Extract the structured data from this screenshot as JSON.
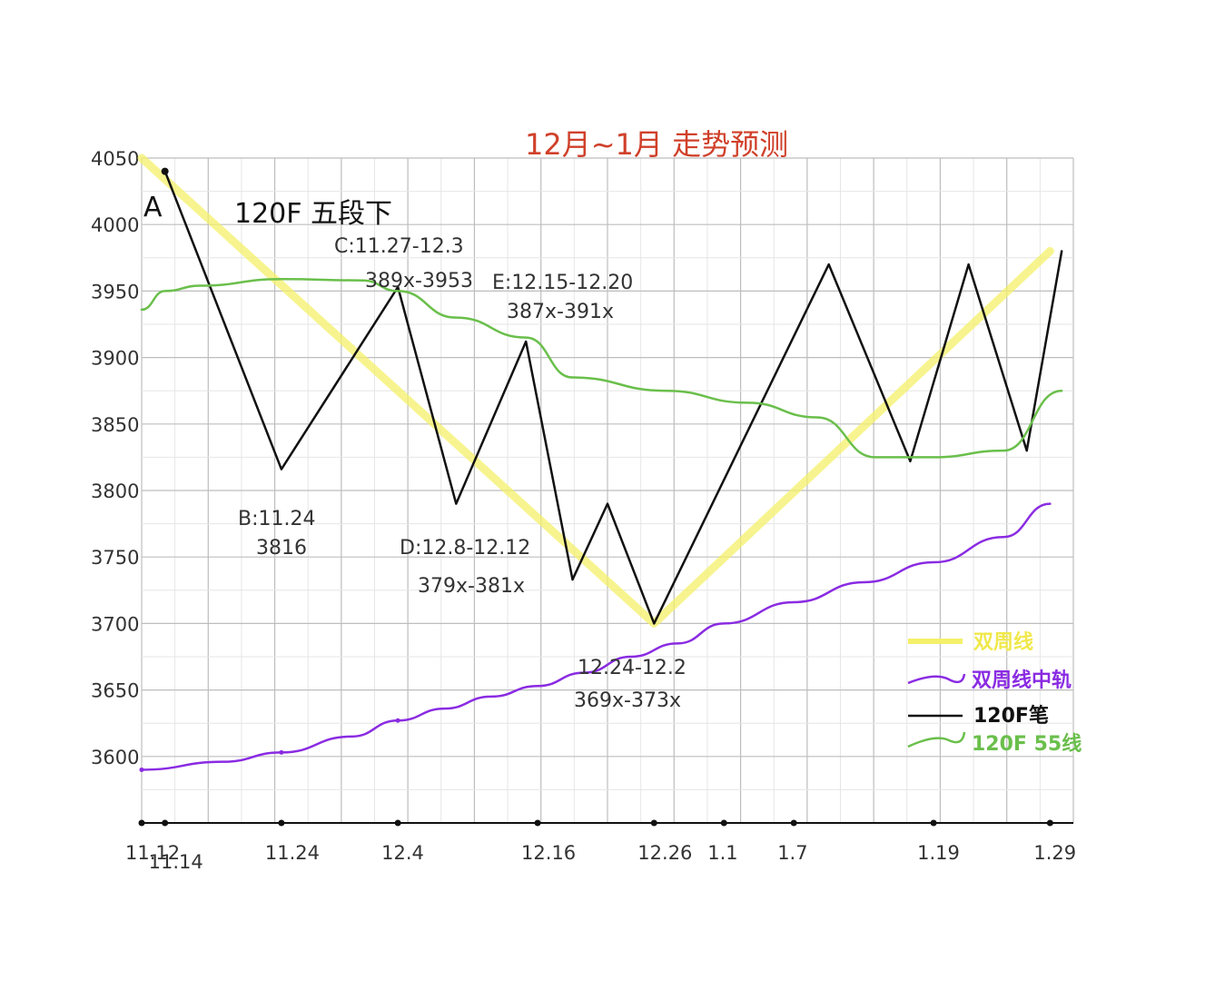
{
  "title": "12月~1月 走势预测",
  "colors": {
    "grid": "#bdbdbd",
    "grid_minor": "#e6e6e6",
    "yellow": "#f4f06a",
    "purple": "#8a2be2",
    "black": "#111111",
    "green": "#6abf4b",
    "title": "#d0402a"
  },
  "chart_data": {
    "type": "line",
    "title": "12月~1月 走势预测",
    "xlabel": "",
    "ylabel": "",
    "ylim": [
      3550,
      4050
    ],
    "x_tick_labels": [
      "11.12",
      "11.14",
      "11.24",
      "12.4",
      "12.16",
      "12.26",
      "1.1",
      "1.7",
      "1.19",
      "1.29"
    ],
    "y_tick_labels": [
      "4050",
      "4000",
      "3950",
      "3900",
      "3850",
      "3800",
      "3750",
      "3700",
      "3650",
      "3600"
    ],
    "y_ticks": [
      4050,
      4000,
      3950,
      3900,
      3850,
      3800,
      3750,
      3700,
      3650,
      3600
    ],
    "legend": [
      "双周线",
      "双周线中轨",
      "120F笔",
      "120F 55线"
    ],
    "series": [
      {
        "name": "双周线",
        "color": "#f4f06a",
        "x": [
          "11.12",
          "12.26",
          "1.29"
        ],
        "y": [
          4050,
          3700,
          3980
        ]
      },
      {
        "name": "双周线中轨",
        "color": "#8a2be2",
        "x": [
          "11.12",
          "11.19",
          "11.24",
          "11.30",
          "12.4",
          "12.8",
          "12.12",
          "12.16",
          "12.20",
          "12.24",
          "12.28",
          "1.1",
          "1.7",
          "1.13",
          "1.19",
          "1.25",
          "1.29"
        ],
        "y": [
          3590,
          3596,
          3603,
          3615,
          3627,
          3636,
          3645,
          3653,
          3663,
          3675,
          3685,
          3700,
          3716,
          3731,
          3746,
          3765,
          3790
        ]
      },
      {
        "name": "120F笔",
        "color": "#111111",
        "x": [
          "11.14",
          "11.24",
          "12.4",
          "12.9",
          "12.15",
          "12.19",
          "12.22",
          "12.26",
          "1.10",
          "1.17",
          "1.22",
          "1.27",
          "1.30"
        ],
        "y": [
          4040,
          3816,
          3953,
          3790,
          3912,
          3733,
          3790,
          3700,
          3970,
          3822,
          3970,
          3830,
          3980
        ]
      },
      {
        "name": "120F 55线",
        "color": "#6abf4b",
        "x": [
          "11.12",
          "11.14",
          "11.17",
          "11.24",
          "12.1",
          "12.4",
          "12.9",
          "12.15",
          "12.19",
          "12.27",
          "1.3",
          "1.9",
          "1.14",
          "1.19",
          "1.25",
          "1.30"
        ],
        "y": [
          3936,
          3950,
          3954,
          3959,
          3958,
          3950,
          3930,
          3915,
          3885,
          3875,
          3866,
          3855,
          3825,
          3825,
          3830,
          3875
        ]
      }
    ],
    "annotations": [
      "A",
      "120F 五段下",
      "B:11.24",
      "3816",
      "C:11.27-12.3",
      "389x-3953",
      "E:12.15-12.20",
      "387x-391x",
      "D:12.8-12.12",
      "379x-381x",
      "12.24-12.2",
      "369x-373x"
    ]
  }
}
